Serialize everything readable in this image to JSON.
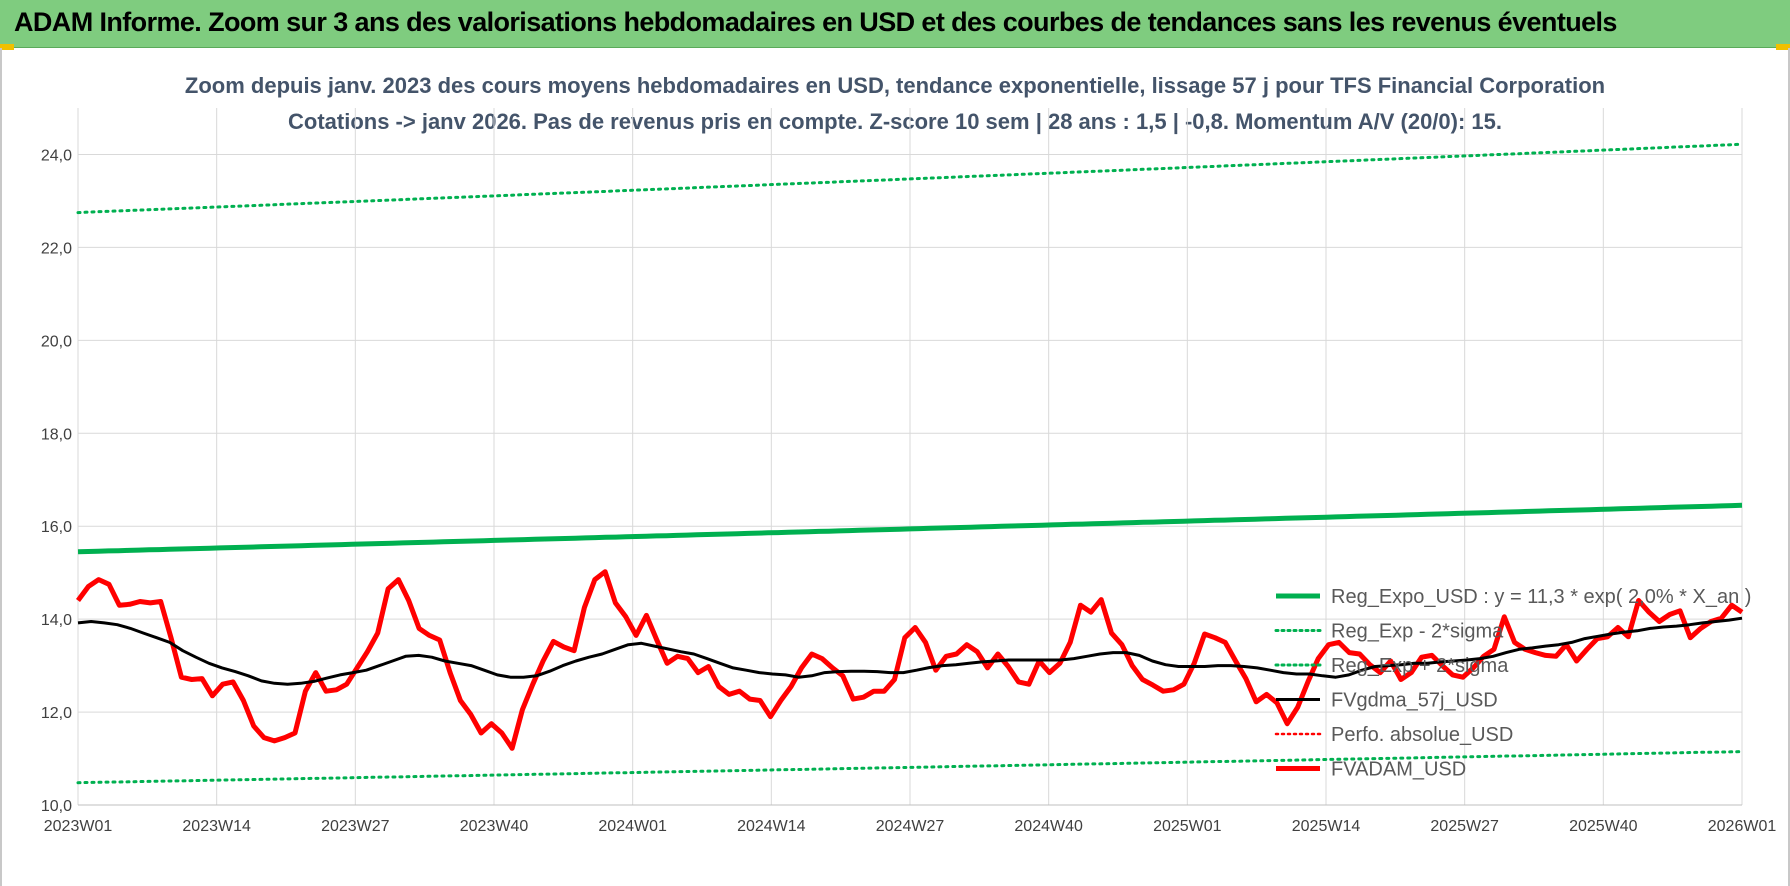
{
  "header": {
    "banner": "ADAM Informe. Zoom sur 3 ans des valorisations hebdomadaires en USD et des courbes de tendances sans les revenus éventuels"
  },
  "chart_data": {
    "type": "line",
    "title": "Zoom depuis janv. 2023 des cours moyens hebdomadaires en USD, tendance exponentielle, lissage 57 j pour TFS Financial Corporation",
    "subtitle": "Cotations -> janv 2026. Pas de revenus pris en compte. Z-score 10 sem | 28 ans : 1,5 | -0,8. Momentum A/V (20/0): 15.",
    "xlabel": "",
    "ylabel": "",
    "ylim": [
      10,
      25
    ],
    "y_ticks": [
      "10,0",
      "12,0",
      "14,0",
      "16,0",
      "18,0",
      "20,0",
      "22,0",
      "24,0"
    ],
    "x_ticks": [
      "2023W01",
      "2023W14",
      "2023W27",
      "2023W40",
      "2024W01",
      "2024W14",
      "2024W27",
      "2024W40",
      "2025W01",
      "2025W14",
      "2025W27",
      "2025W40",
      "2026W01"
    ],
    "grid": true,
    "legend_position": "right",
    "series": [
      {
        "name": "Reg_Expo_USD : y = 11,3 * exp( 2,0% *  X_an )",
        "color": "#00b050",
        "style": "solid-thick",
        "start": 15.45,
        "end": 16.45
      },
      {
        "name": "Reg_Exp - 2*sigma",
        "color": "#00b050",
        "style": "dotted",
        "start": 10.48,
        "end": 11.15
      },
      {
        "name": "Reg_Exp + 2*sigma",
        "color": "#00b050",
        "style": "dotted",
        "start": 22.75,
        "end": 24.22
      },
      {
        "name": "FVgdma_57j_USD",
        "color": "#000000",
        "style": "solid",
        "values": [
          13.92,
          13.95,
          13.92,
          13.88,
          13.8,
          13.7,
          13.6,
          13.5,
          13.32,
          13.18,
          13.05,
          12.95,
          12.87,
          12.78,
          12.67,
          12.62,
          12.6,
          12.62,
          12.66,
          12.73,
          12.8,
          12.85,
          12.9,
          13.0,
          13.1,
          13.2,
          13.22,
          13.18,
          13.1,
          13.05,
          13.0,
          12.9,
          12.8,
          12.75,
          12.75,
          12.78,
          12.88,
          13.0,
          13.1,
          13.18,
          13.25,
          13.35,
          13.45,
          13.48,
          13.42,
          13.36,
          13.3,
          13.25,
          13.15,
          13.05,
          12.95,
          12.9,
          12.85,
          12.82,
          12.8,
          12.75,
          12.78,
          12.85,
          12.87,
          12.88,
          12.88,
          12.87,
          12.85,
          12.85,
          12.9,
          12.96,
          13.0,
          13.02,
          13.05,
          13.08,
          13.1,
          13.12,
          13.12,
          13.12,
          13.12,
          13.12,
          13.15,
          13.2,
          13.25,
          13.28,
          13.28,
          13.22,
          13.1,
          13.02,
          12.98,
          12.98,
          12.98,
          13.0,
          13.0,
          12.98,
          12.95,
          12.9,
          12.85,
          12.82,
          12.82,
          12.78,
          12.75,
          12.8,
          12.9,
          12.98,
          13.0,
          13.02,
          13.05,
          13.05,
          13.08,
          13.1,
          13.12,
          13.15,
          13.2,
          13.28,
          13.35,
          13.38,
          13.42,
          13.45,
          13.5,
          13.58,
          13.63,
          13.68,
          13.72,
          13.75,
          13.8,
          13.83,
          13.85,
          13.88,
          13.92,
          13.95,
          13.98,
          14.02
        ]
      },
      {
        "name": "Perfo. absolue_USD",
        "color": "#ff0000",
        "style": "dotted-legend-only",
        "values": []
      },
      {
        "name": "FVADAM_USD",
        "color": "#ff0000",
        "style": "solid-thick",
        "values": [
          14.4,
          14.7,
          14.85,
          14.75,
          14.3,
          14.32,
          14.38,
          14.35,
          14.38,
          13.6,
          12.75,
          12.7,
          12.72,
          12.35,
          12.6,
          12.65,
          12.25,
          11.7,
          11.45,
          11.38,
          11.45,
          11.55,
          12.45,
          12.85,
          12.45,
          12.48,
          12.6,
          12.95,
          13.3,
          13.7,
          14.65,
          14.85,
          14.4,
          13.8,
          13.65,
          13.55,
          12.85,
          12.25,
          11.95,
          11.55,
          11.75,
          11.55,
          11.22,
          12.05,
          12.6,
          13.1,
          13.52,
          13.4,
          13.32,
          14.25,
          14.85,
          15.02,
          14.35,
          14.05,
          13.65,
          14.08,
          13.55,
          13.05,
          13.2,
          13.15,
          12.85,
          12.98,
          12.55,
          12.38,
          12.45,
          12.28,
          12.25,
          11.9,
          12.25,
          12.55,
          12.95,
          13.25,
          13.15,
          12.95,
          12.78,
          12.28,
          12.32,
          12.45,
          12.45,
          12.7,
          13.6,
          13.82,
          13.5,
          12.9,
          13.2,
          13.25,
          13.45,
          13.3,
          12.95,
          13.25,
          12.98,
          12.65,
          12.6,
          13.1,
          12.85,
          13.05,
          13.5,
          14.3,
          14.15,
          14.42,
          13.7,
          13.45,
          13.0,
          12.7,
          12.58,
          12.45,
          12.48,
          12.6,
          13.05,
          13.68,
          13.6,
          13.5,
          13.1,
          12.72,
          12.22,
          12.38,
          12.2,
          11.75,
          12.1,
          12.65,
          13.15,
          13.45,
          13.5,
          13.28,
          13.25,
          13.02,
          12.85,
          13.1,
          12.7,
          12.85,
          13.18,
          13.22,
          13.0,
          12.8,
          12.75,
          12.95,
          13.2,
          13.35,
          14.05,
          13.5,
          13.35,
          13.28,
          13.22,
          13.2,
          13.45,
          13.1,
          13.35,
          13.58,
          13.62,
          13.82,
          13.62,
          14.4,
          14.15,
          13.95,
          14.1,
          14.18,
          13.6,
          13.8,
          13.95,
          14.02,
          14.3,
          14.15
        ]
      }
    ]
  }
}
